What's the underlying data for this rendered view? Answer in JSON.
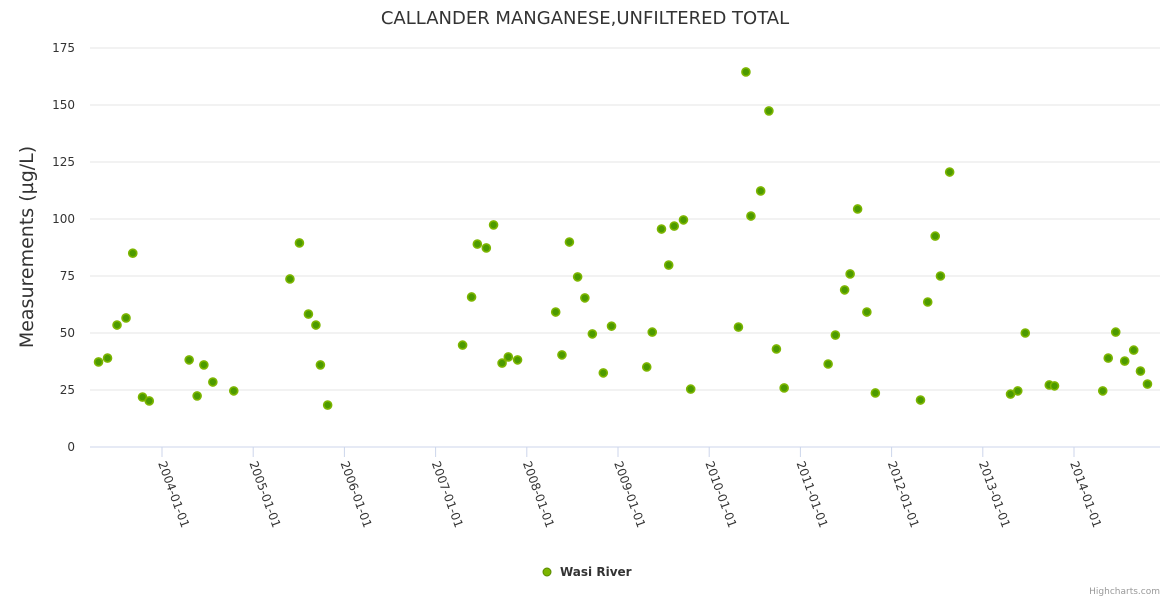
{
  "chart_data": {
    "type": "scatter",
    "title": "CALLANDER MANGANESE,UNFILTERED TOTAL",
    "xlabel": "",
    "ylabel": "Measurements (µg/L)",
    "ylim": [
      0,
      175
    ],
    "yticks": [
      0,
      25,
      50,
      75,
      100,
      125,
      150,
      175
    ],
    "xticks": [
      "2004-01-01",
      "2005-01-01",
      "2006-01-01",
      "2007-01-01",
      "2008-01-01",
      "2009-01-01",
      "2010-01-01",
      "2011-01-01",
      "2012-01-01",
      "2013-01-01",
      "2014-01-01"
    ],
    "grid": true,
    "legend_position": "bottom-center",
    "series": [
      {
        "name": "Wasi River",
        "color": "#7cb500",
        "points": [
          [
            "2003-04-22",
            37.3
          ],
          [
            "2003-05-28",
            39
          ],
          [
            "2003-07-05",
            53.5
          ],
          [
            "2003-08-10",
            56.6
          ],
          [
            "2003-09-06",
            85
          ],
          [
            "2003-10-15",
            21.9
          ],
          [
            "2003-11-11",
            20.2
          ],
          [
            "2004-04-19",
            38.2
          ],
          [
            "2004-05-21",
            22.4
          ],
          [
            "2004-06-17",
            36
          ],
          [
            "2004-07-23",
            28.5
          ],
          [
            "2004-10-15",
            24.6
          ],
          [
            "2005-05-28",
            73.7
          ],
          [
            "2005-07-05",
            89.5
          ],
          [
            "2005-08-10",
            58.3
          ],
          [
            "2005-09-09",
            53.5
          ],
          [
            "2005-09-27",
            36
          ],
          [
            "2005-10-26",
            18.4
          ],
          [
            "2007-04-19",
            44.7
          ],
          [
            "2007-05-25",
            65.8
          ],
          [
            "2007-06-17",
            89
          ],
          [
            "2007-07-23",
            87.3
          ],
          [
            "2007-08-21",
            97.4
          ],
          [
            "2007-09-24",
            36.8
          ],
          [
            "2007-10-19",
            39.5
          ],
          [
            "2007-11-25",
            38.2
          ],
          [
            "2008-04-26",
            59.2
          ],
          [
            "2008-05-21",
            40.4
          ],
          [
            "2008-06-20",
            89.9
          ],
          [
            "2008-07-23",
            74.6
          ],
          [
            "2008-08-21",
            65.4
          ],
          [
            "2008-09-20",
            49.6
          ],
          [
            "2008-11-03",
            32.5
          ],
          [
            "2008-12-06",
            53
          ],
          [
            "2009-04-26",
            35.1
          ],
          [
            "2009-05-18",
            50.4
          ],
          [
            "2009-06-24",
            95.6
          ],
          [
            "2009-07-23",
            79.8
          ],
          [
            "2009-08-14",
            96.9
          ],
          [
            "2009-09-20",
            99.6
          ],
          [
            "2009-10-19",
            25.4
          ],
          [
            "2010-04-28",
            52.6
          ],
          [
            "2010-05-28",
            164.5
          ],
          [
            "2010-06-17",
            101.3
          ],
          [
            "2010-07-26",
            112.3
          ],
          [
            "2010-08-28",
            147.4
          ],
          [
            "2010-09-27",
            43
          ],
          [
            "2010-10-28",
            25.9
          ],
          [
            "2011-04-22",
            36.4
          ],
          [
            "2011-05-21",
            49.1
          ],
          [
            "2011-06-27",
            68.9
          ],
          [
            "2011-07-19",
            75.9
          ],
          [
            "2011-08-18",
            104.4
          ],
          [
            "2011-09-24",
            59.2
          ],
          [
            "2011-10-28",
            23.7
          ],
          [
            "2012-04-26",
            20.6
          ],
          [
            "2012-05-25",
            63.6
          ],
          [
            "2012-06-24",
            92.5
          ],
          [
            "2012-07-15",
            75
          ],
          [
            "2012-08-21",
            120.6
          ],
          [
            "2013-04-22",
            23.2
          ],
          [
            "2013-05-21",
            24.6
          ],
          [
            "2013-06-20",
            50
          ],
          [
            "2013-09-24",
            27.2
          ],
          [
            "2013-10-15",
            26.8
          ],
          [
            "2014-04-26",
            24.6
          ],
          [
            "2014-05-18",
            39
          ],
          [
            "2014-06-17",
            50.4
          ],
          [
            "2014-07-23",
            37.7
          ],
          [
            "2014-08-28",
            42.5
          ],
          [
            "2014-09-24",
            33.3
          ],
          [
            "2014-10-22",
            27.6
          ]
        ]
      }
    ],
    "credits": "Highcharts.com"
  }
}
